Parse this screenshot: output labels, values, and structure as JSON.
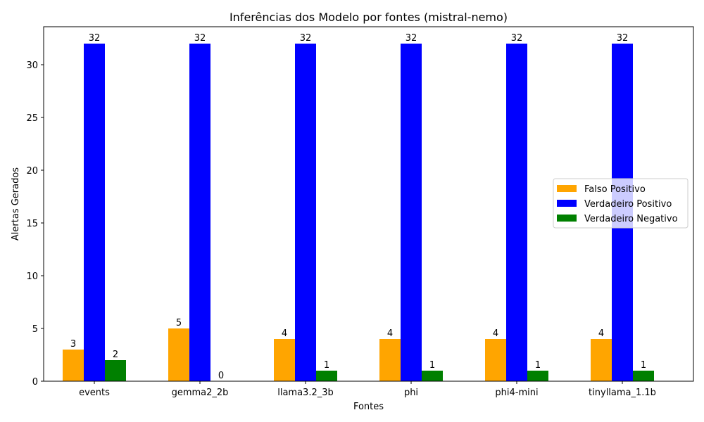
{
  "chart_data": {
    "type": "bar",
    "title": "Inferências dos Modelo por fontes (mistral-nemo)",
    "xlabel": "Fontes",
    "ylabel": "Alertas Gerados",
    "categories": [
      "events",
      "gemma2_2b",
      "llama3.2_3b",
      "phi",
      "phi4-mini",
      "tinyllama_1.1b"
    ],
    "series": [
      {
        "name": "Falso Positivo",
        "color": "#FFA500",
        "values": [
          3,
          5,
          4,
          4,
          4,
          4
        ]
      },
      {
        "name": "Verdadeiro Positivo",
        "color": "#0000FF",
        "values": [
          32,
          32,
          32,
          32,
          32,
          32
        ]
      },
      {
        "name": "Verdadeiro Negativo",
        "color": "#008000",
        "values": [
          2,
          0,
          1,
          1,
          1,
          1
        ]
      }
    ],
    "ylim": [
      0,
      33.6
    ],
    "yticks": [
      0,
      5,
      10,
      15,
      20,
      25,
      30
    ],
    "grid": false,
    "legend_position": "center-right"
  }
}
